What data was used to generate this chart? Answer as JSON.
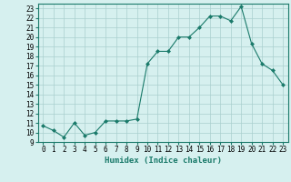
{
  "x": [
    0,
    1,
    2,
    3,
    4,
    5,
    6,
    7,
    8,
    9,
    10,
    11,
    12,
    13,
    14,
    15,
    16,
    17,
    18,
    19,
    20,
    21,
    22,
    23
  ],
  "y": [
    10.7,
    10.2,
    9.5,
    11.0,
    9.7,
    10.0,
    11.2,
    11.2,
    11.2,
    11.4,
    17.2,
    18.5,
    18.5,
    20.0,
    20.0,
    21.0,
    22.2,
    22.2,
    21.7,
    23.2,
    19.3,
    17.2,
    16.5,
    15.0
  ],
  "line_color": "#1a7a6a",
  "marker": "D",
  "marker_size": 2.0,
  "bg_color": "#d6f0ef",
  "grid_color": "#aacfcf",
  "xlabel": "Humidex (Indice chaleur)",
  "xlim": [
    -0.5,
    23.5
  ],
  "ylim": [
    9,
    23.5
  ],
  "yticks": [
    9,
    10,
    11,
    12,
    13,
    14,
    15,
    16,
    17,
    18,
    19,
    20,
    21,
    22,
    23
  ],
  "xticks": [
    0,
    1,
    2,
    3,
    4,
    5,
    6,
    7,
    8,
    9,
    10,
    11,
    12,
    13,
    14,
    15,
    16,
    17,
    18,
    19,
    20,
    21,
    22,
    23
  ],
  "tick_fontsize": 5.5,
  "label_fontsize": 6.5,
  "linewidth": 0.8
}
